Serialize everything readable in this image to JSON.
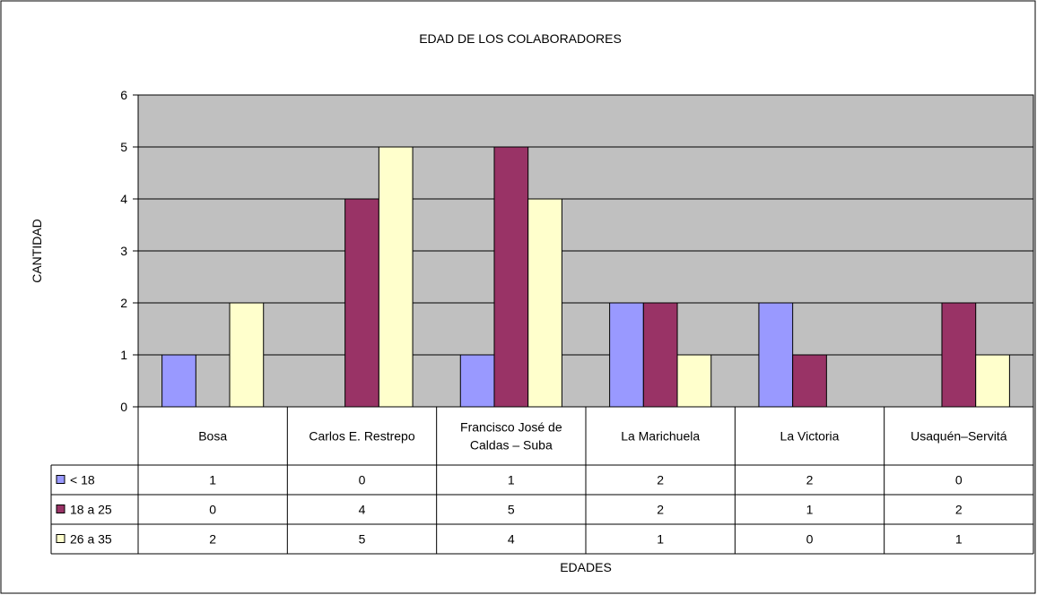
{
  "chart_data": {
    "type": "bar",
    "title": "EDAD DE LOS COLABORADORES",
    "xlabel": "EDADES",
    "ylabel": "CANTIDAD",
    "ylim": [
      0,
      6
    ],
    "yticks": [
      "0",
      "1",
      "2",
      "3",
      "4",
      "5",
      "6"
    ],
    "grid": true,
    "legend_placement": "data-table",
    "categories": [
      [
        "Bosa"
      ],
      [
        "Carlos E. Restrepo"
      ],
      [
        "Francisco José de",
        "Caldas – Suba"
      ],
      [
        "La Marichuela"
      ],
      [
        "La Victoria"
      ],
      [
        "Usaquén–Servitá"
      ]
    ],
    "series": [
      {
        "name": "< 18",
        "color": "#9999ff",
        "values": [
          1,
          0,
          1,
          2,
          2,
          0
        ],
        "labels": [
          "1",
          "0",
          "1",
          "2",
          "2",
          "0"
        ]
      },
      {
        "name": "18 a 25",
        "color": "#993366",
        "values": [
          0,
          4,
          5,
          2,
          1,
          2
        ],
        "labels": [
          "0",
          "4",
          "5",
          "2",
          "1",
          "2"
        ]
      },
      {
        "name": "26 a 35",
        "color": "#ffffcc",
        "values": [
          2,
          5,
          4,
          1,
          0,
          1
        ],
        "labels": [
          "2",
          "5",
          "4",
          "1",
          "0",
          "1"
        ]
      }
    ],
    "plot_background": "#c0c0c0"
  }
}
